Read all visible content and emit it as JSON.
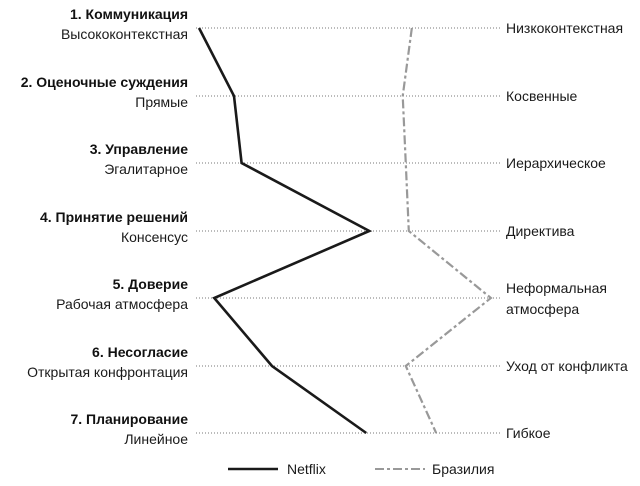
{
  "chart_data": {
    "type": "line",
    "orientation": "horizontal",
    "xlim": [
      0,
      100
    ],
    "grid": "dotted horizontal lines per category",
    "legend_position": "bottom",
    "categories": [
      {
        "title": "1. Коммуникация",
        "left": "Высококонтекстная",
        "right": [
          "Низкоконтекстная"
        ]
      },
      {
        "title": "2. Оценочные суждения",
        "left": "Прямые",
        "right": [
          "Косвенные"
        ]
      },
      {
        "title": "3. Управление",
        "left": "Эгалитарное",
        "right": [
          "Иерархическое"
        ]
      },
      {
        "title": "4. Принятие решений",
        "left": "Консенсус",
        "right": [
          "Директива"
        ]
      },
      {
        "title": "5. Доверие",
        "left": "Рабочая атмосфера",
        "right": [
          "Неформальная",
          "атмосфера"
        ]
      },
      {
        "title": "6. Несогласие",
        "left": "Открытая конфронтация",
        "right": [
          "Уход от конфликта"
        ]
      },
      {
        "title": "7. Планирование",
        "left": "Линейное",
        "right": [
          "Гибкое"
        ]
      }
    ],
    "series": [
      {
        "name": "Netflix",
        "color": "#1a1a1a",
        "style": "solid",
        "values": [
          1,
          12.5,
          15,
          57,
          6,
          25,
          56
        ]
      },
      {
        "name": "Бразилия",
        "color": "#999999",
        "style": "dash-dot",
        "values": [
          71,
          68,
          69,
          70,
          97,
          69,
          79
        ]
      }
    ]
  }
}
